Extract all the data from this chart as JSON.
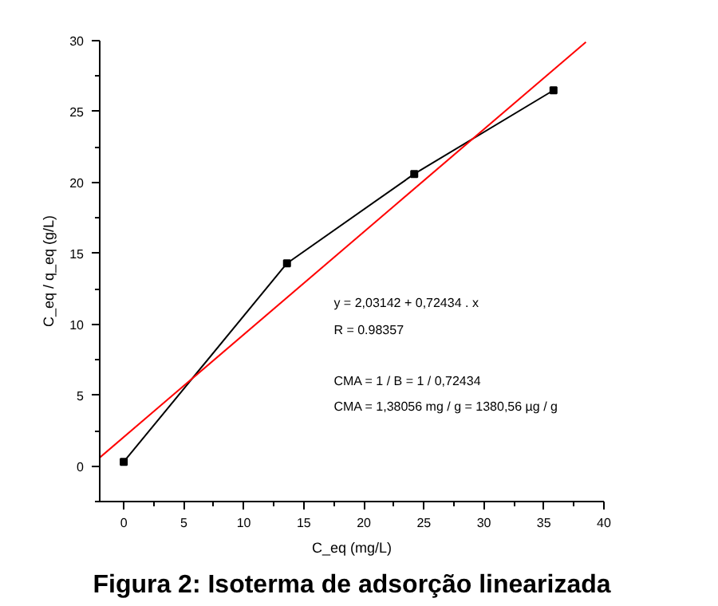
{
  "chart_data": {
    "type": "line",
    "title": "Figura 2: Isoterma de adsorção linearizada",
    "xlabel": "C_eq (mg/L)",
    "ylabel": "C_eq / q_eq (g/L)",
    "x": [
      0,
      13.6,
      24.2,
      35.8
    ],
    "series": [
      {
        "color": "#000000",
        "values": [
          0.3,
          14.3,
          20.6,
          26.5
        ],
        "marker": "square"
      },
      {
        "color": "#ff0000",
        "x": [
          -2,
          38.5
        ],
        "values": [
          0.6,
          29.9
        ],
        "marker": "none"
      }
    ],
    "annotations": [
      "y = 2,03142 + 0,72434 . x",
      "R = 0.98357",
      "CMA = 1 / B = 1 / 0,72434",
      "CMA = 1,38056 mg / g = 1380,56 µg / g"
    ],
    "xlim": [
      -2,
      40
    ],
    "ylim": [
      -2.5,
      30
    ],
    "xticks": [
      0,
      5,
      10,
      15,
      20,
      25,
      30,
      35,
      40
    ],
    "yticks": [
      0,
      5,
      10,
      15,
      20,
      25,
      30
    ],
    "grid": false
  }
}
